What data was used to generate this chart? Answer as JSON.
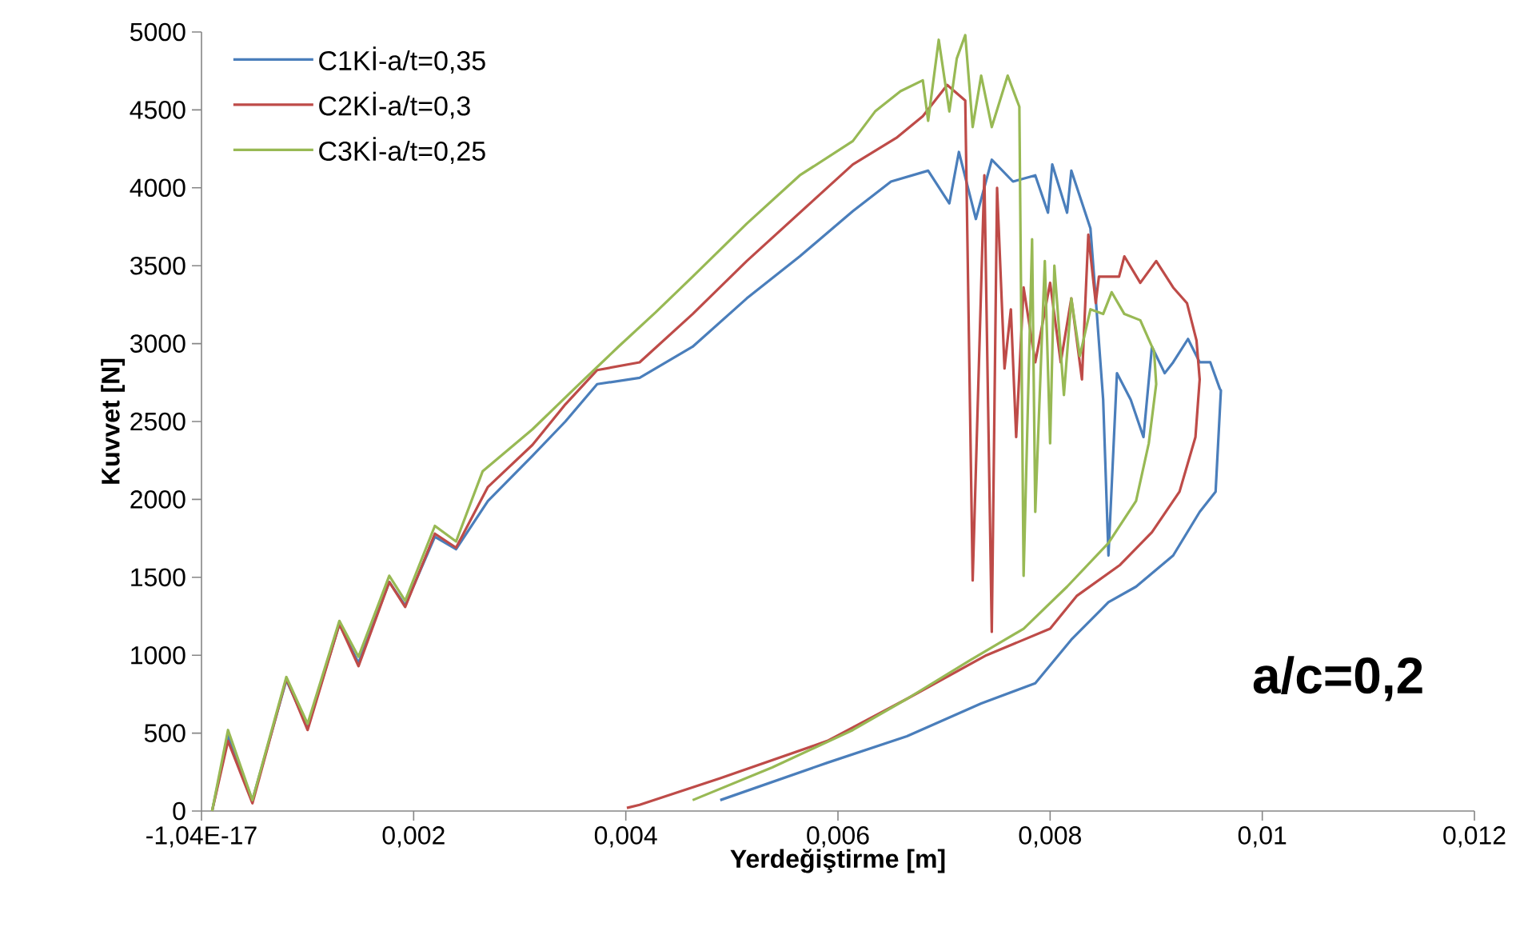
{
  "chart_data": {
    "type": "line",
    "xlabel": "Yerdeğiştirme [m]",
    "ylabel": "Kuvvet [N]",
    "annotations": [
      "a/c=0,2"
    ],
    "xlim": [
      -1.04e-17,
      0.012
    ],
    "xticks": [
      {
        "value": -1.04e-17,
        "label": "-1,04E-17"
      },
      {
        "value": 0.002,
        "label": "0,002"
      },
      {
        "value": 0.004,
        "label": "0,004"
      },
      {
        "value": 0.006,
        "label": "0,006"
      },
      {
        "value": 0.008,
        "label": "0,008"
      },
      {
        "value": 0.01,
        "label": "0,01"
      },
      {
        "value": 0.012,
        "label": "0,012"
      }
    ],
    "ylim": [
      0,
      5000
    ],
    "yticks": [
      0,
      500,
      1000,
      1500,
      2000,
      2500,
      3000,
      3500,
      4000,
      4500,
      5000
    ],
    "legend": "top left",
    "series": [
      {
        "name": "C1Kİ-a/t=0,35",
        "color": "#4a7ebb",
        "x": [
          0.0001,
          0.00025,
          0.00048,
          0.0008,
          0.001,
          0.0013,
          0.00148,
          0.00177,
          0.00192,
          0.0022,
          0.0024,
          0.0027,
          0.00312,
          0.00343,
          0.00373,
          0.00413,
          0.00463,
          0.00514,
          0.00564,
          0.00614,
          0.0065,
          0.00685,
          0.00705,
          0.00714,
          0.0073,
          0.00745,
          0.00765,
          0.00786,
          0.00798,
          0.00802,
          0.00816,
          0.0082,
          0.00838,
          0.00843,
          0.0085,
          0.00855,
          0.00863,
          0.00876,
          0.00888,
          0.00896,
          0.00908,
          0.00916,
          0.0093,
          0.00941,
          0.00951,
          0.0096,
          0.00961,
          0.00956,
          0.00941,
          0.00916,
          0.00881,
          0.00855,
          0.0082,
          0.00786,
          0.00735,
          0.00665,
          0.0059,
          0.00489
        ],
        "values": [
          0,
          480,
          70,
          840,
          540,
          1200,
          950,
          1470,
          1320,
          1760,
          1680,
          1990,
          2280,
          2500,
          2740,
          2780,
          2980,
          3290,
          3560,
          3850,
          4040,
          4110,
          3900,
          4230,
          3800,
          4180,
          4040,
          4080,
          3840,
          4150,
          3840,
          4110,
          3740,
          3290,
          2640,
          1640,
          2810,
          2640,
          2400,
          2980,
          2810,
          2880,
          3030,
          2880,
          2880,
          2710,
          2700,
          2050,
          1920,
          1640,
          1440,
          1340,
          1100,
          820,
          690,
          480,
          310,
          70
        ]
      },
      {
        "name": "C2Kİ-a/t=0,3",
        "color": "#be4b48",
        "x": [
          0.0001,
          0.00025,
          0.00048,
          0.0008,
          0.001,
          0.0013,
          0.00148,
          0.00177,
          0.00192,
          0.0022,
          0.0024,
          0.0027,
          0.00312,
          0.00343,
          0.00373,
          0.00413,
          0.00463,
          0.00514,
          0.00564,
          0.00614,
          0.00655,
          0.0068,
          0.00703,
          0.0072,
          0.00727,
          0.00738,
          0.00745,
          0.0075,
          0.00757,
          0.00763,
          0.00768,
          0.00775,
          0.00786,
          0.008,
          0.0081,
          0.0082,
          0.0083,
          0.00836,
          0.00843,
          0.00846,
          0.00865,
          0.0087,
          0.00885,
          0.009,
          0.00916,
          0.00929,
          0.00938,
          0.00941,
          0.00937,
          0.00922,
          0.00896,
          0.00866,
          0.00825,
          0.008,
          0.0074,
          0.00665,
          0.0059,
          0.00489,
          0.00413,
          0.00401
        ],
        "values": [
          0,
          450,
          50,
          850,
          520,
          1200,
          930,
          1470,
          1310,
          1780,
          1690,
          2080,
          2350,
          2610,
          2830,
          2880,
          3190,
          3530,
          3840,
          4150,
          4320,
          4460,
          4660,
          4560,
          1480,
          4080,
          1150,
          4000,
          2840,
          3220,
          2400,
          3360,
          2880,
          3390,
          2880,
          3290,
          2770,
          3700,
          3260,
          3430,
          3430,
          3560,
          3390,
          3530,
          3360,
          3260,
          3020,
          2770,
          2400,
          2050,
          1790,
          1580,
          1380,
          1170,
          1000,
          720,
          450,
          210,
          40,
          20
        ]
      },
      {
        "name": "C3Kİ-a/t=0,25",
        "color": "#98b954",
        "x": [
          0.0001,
          0.00025,
          0.00048,
          0.0008,
          0.001,
          0.0013,
          0.00148,
          0.00177,
          0.00192,
          0.0022,
          0.0024,
          0.00265,
          0.00312,
          0.00353,
          0.00393,
          0.00428,
          0.00463,
          0.00514,
          0.00564,
          0.00614,
          0.00635,
          0.00659,
          0.0068,
          0.00685,
          0.00695,
          0.00705,
          0.00712,
          0.0072,
          0.00727,
          0.00735,
          0.00745,
          0.0076,
          0.00771,
          0.00775,
          0.00783,
          0.00786,
          0.00795,
          0.008,
          0.00804,
          0.00813,
          0.0082,
          0.00828,
          0.00838,
          0.0085,
          0.00858,
          0.0087,
          0.00885,
          0.00898,
          0.009,
          0.00893,
          0.00881,
          0.00855,
          0.00816,
          0.00775,
          0.00725,
          0.00665,
          0.00614,
          0.00538,
          0.00463
        ],
        "values": [
          0,
          520,
          70,
          860,
          560,
          1220,
          990,
          1510,
          1350,
          1830,
          1730,
          2180,
          2450,
          2720,
          2980,
          3200,
          3430,
          3770,
          4080,
          4300,
          4490,
          4620,
          4690,
          4430,
          4950,
          4490,
          4830,
          4980,
          4390,
          4720,
          4390,
          4720,
          4520,
          1510,
          3670,
          1920,
          3530,
          2360,
          3500,
          2670,
          3290,
          2920,
          3220,
          3190,
          3330,
          3190,
          3150,
          2950,
          2740,
          2360,
          1990,
          1720,
          1440,
          1170,
          970,
          720,
          520,
          280,
          70
        ]
      }
    ]
  }
}
